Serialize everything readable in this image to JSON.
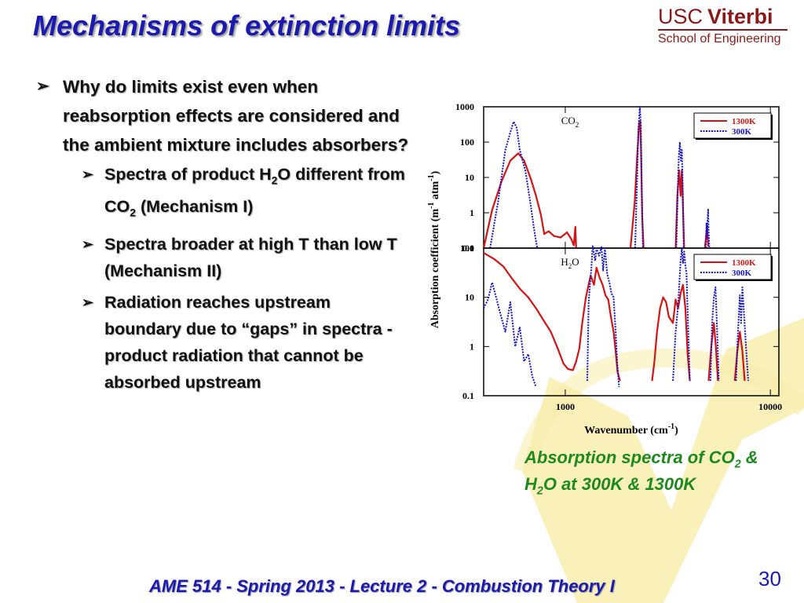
{
  "slide": {
    "title": "Mechanisms of extinction limits",
    "page_number": "30",
    "footer": "AME 514 - Spring 2013 - Lecture 2 - Combustion Theory I"
  },
  "logo": {
    "usc": "USC",
    "viterbi": "Viterbi",
    "school": "School of Engineering"
  },
  "bullets": {
    "main": "Why do limits exist even when reabsorption effects are considered and the ambient mixture includes absorbers?",
    "sub1": {
      "a": "Spectra of product H",
      "b": "2",
      "c": "O different from CO",
      "d": "2",
      "e": " (Mechanism I)"
    },
    "sub2": "Spectra broader at high T than low T  (Mechanism II)",
    "sub3": "Radiation reaches upstream boundary due to “gaps” in spectra - product radiation that cannot be absorbed upstream"
  },
  "caption": {
    "a": "Absorption spectra of CO",
    "b": "2",
    "c": " & H",
    "d": "2",
    "e": "O at 300K & 1300K"
  },
  "colors": {
    "title": "#1a1ab0",
    "caption": "#1e8a1e",
    "logo": "#8a1a1a",
    "hot": "#d41414",
    "cold": "#1414cc"
  },
  "chart_data": [
    {
      "type": "line",
      "panel_label": {
        "a": "CO",
        "b": "2"
      },
      "xscale": "log",
      "xlim": [
        400,
        11000
      ],
      "yscale": "log",
      "ylim": [
        0.1,
        1000
      ],
      "yticks": [
        "1000",
        "100",
        "10",
        "1",
        "0.1"
      ],
      "ylabel": {
        "a": "Absorption coefficient (m",
        "b": "-1",
        "c": " atm",
        "d": "-1",
        "e": ")"
      },
      "legend_position": "top-right",
      "series": [
        {
          "name": "1300K",
          "color": "#d41414",
          "style": "solid",
          "segments": [
            [
              [
                400,
                0.1
              ],
              [
                440,
                1.2
              ],
              [
                490,
                8
              ],
              [
                540,
                30
              ],
              [
                590,
                48
              ],
              [
                630,
                30
              ],
              [
                680,
                9
              ],
              [
                720,
                3
              ],
              [
                760,
                0.9
              ],
              [
                790,
                0.25
              ],
              [
                830,
                0.3
              ],
              [
                880,
                0.22
              ],
              [
                950,
                0.2
              ],
              [
                1020,
                0.28
              ],
              [
                1070,
                0.18
              ],
              [
                1100,
                0.12
              ],
              [
                1120,
                0.4
              ],
              [
                1130,
                0.1
              ]
            ],
            [
              [
                2080,
                0.1
              ],
              [
                2180,
                2
              ],
              [
                2240,
                40
              ],
              [
                2290,
                350
              ],
              [
                2320,
                380
              ],
              [
                2340,
                60
              ],
              [
                2370,
                0.8
              ],
              [
                2410,
                0.1
              ]
            ],
            [
              [
                3450,
                0.1
              ],
              [
                3520,
                3
              ],
              [
                3590,
                16
              ],
              [
                3650,
                3
              ],
              [
                3700,
                16
              ],
              [
                3750,
                1.3
              ],
              [
                3800,
                0.1
              ]
            ],
            [
              [
                4800,
                0.1
              ],
              [
                4900,
                0.4
              ],
              [
                4980,
                0.11
              ]
            ]
          ]
        },
        {
          "name": "300K",
          "color": "#1414cc",
          "style": "dotted",
          "segments": [
            [
              [
                430,
                0.1
              ],
              [
                470,
                2
              ],
              [
                510,
                60
              ],
              [
                540,
                190
              ],
              [
                560,
                380
              ],
              [
                580,
                250
              ],
              [
                600,
                60
              ],
              [
                640,
                15
              ],
              [
                680,
                1.5
              ],
              [
                710,
                0.25
              ],
              [
                730,
                0.1
              ]
            ],
            [
              [
                2190,
                0.1
              ],
              [
                2240,
                10
              ],
              [
                2270,
                200
              ],
              [
                2310,
                1000
              ],
              [
                2335,
                300
              ],
              [
                2360,
                5
              ],
              [
                2390,
                0.1
              ]
            ],
            [
              [
                3480,
                0.1
              ],
              [
                3540,
                6
              ],
              [
                3580,
                40
              ],
              [
                3620,
                100
              ],
              [
                3660,
                30
              ],
              [
                3700,
                60
              ],
              [
                3740,
                5
              ],
              [
                3780,
                0.1
              ]
            ],
            [
              [
                4850,
                0.1
              ],
              [
                4880,
                0.5
              ],
              [
                4910,
                0.2
              ],
              [
                4940,
                0.6
              ],
              [
                4970,
                1.3
              ],
              [
                5000,
                0.3
              ],
              [
                5040,
                0.1
              ]
            ]
          ]
        }
      ]
    },
    {
      "type": "line",
      "panel_label": {
        "a": "H",
        "b": "2",
        "c": "O"
      },
      "xscale": "log",
      "xlim": [
        400,
        11000
      ],
      "xticks": [
        "1000",
        "10000"
      ],
      "xlabel": {
        "a": "Wavenumber (cm",
        "b": "-1",
        "c": ")"
      },
      "yscale": "log",
      "ylim": [
        0.1,
        100
      ],
      "yticks": [
        "100",
        "10",
        "1",
        "0.1"
      ],
      "legend_position": "top-right",
      "series": [
        {
          "name": "1300K",
          "color": "#d41414",
          "style": "solid",
          "segments": [
            [
              [
                400,
                80
              ],
              [
                450,
                60
              ],
              [
                500,
                42
              ],
              [
                550,
                24
              ],
              [
                600,
                15
              ],
              [
                660,
                10
              ],
              [
                720,
                6
              ],
              [
                780,
                3.5
              ],
              [
                850,
                2
              ],
              [
                920,
                0.9
              ],
              [
                980,
                0.45
              ],
              [
                1030,
                0.35
              ],
              [
                1090,
                0.33
              ],
              [
                1130,
                0.5
              ],
              [
                1170,
                0.9
              ],
              [
                1210,
                3
              ],
              [
                1260,
                10
              ],
              [
                1330,
                28
              ],
              [
                1380,
                18
              ],
              [
                1420,
                40
              ],
              [
                1470,
                25
              ],
              [
                1520,
                18
              ],
              [
                1570,
                11
              ],
              [
                1620,
                9
              ],
              [
                1670,
                4
              ],
              [
                1720,
                2
              ],
              [
                1760,
                0.8
              ],
              [
                1800,
                0.3
              ],
              [
                1850,
                0.2
              ]
            ],
            [
              [
                2650,
                0.2
              ],
              [
                2720,
                0.5
              ],
              [
                2800,
                2
              ],
              [
                2900,
                6
              ],
              [
                3000,
                10
              ],
              [
                3100,
                8
              ],
              [
                3200,
                4
              ],
              [
                3350,
                3
              ],
              [
                3450,
                9
              ],
              [
                3550,
                6
              ],
              [
                3650,
                12
              ],
              [
                3750,
                18
              ],
              [
                3850,
                6
              ],
              [
                3950,
                0.7
              ],
              [
                4050,
                0.2
              ]
            ],
            [
              [
                5000,
                0.2
              ],
              [
                5150,
                1
              ],
              [
                5300,
                3
              ],
              [
                5420,
                1
              ],
              [
                5550,
                0.2
              ]
            ],
            [
              [
                6700,
                0.2
              ],
              [
                6900,
                0.8
              ],
              [
                7100,
                2
              ],
              [
                7300,
                0.8
              ],
              [
                7500,
                0.2
              ]
            ]
          ]
        },
        {
          "name": "300K",
          "color": "#1414cc",
          "style": "dotted",
          "segments": [
            [
              [
                400,
                6
              ],
              [
                420,
                9
              ],
              [
                440,
                20
              ],
              [
                460,
                10
              ],
              [
                480,
                5
              ],
              [
                510,
                2
              ],
              [
                540,
                8
              ],
              [
                570,
                1
              ],
              [
                600,
                2.5
              ],
              [
                630,
                0.5
              ],
              [
                660,
                0.7
              ],
              [
                690,
                0.25
              ],
              [
                720,
                0.15
              ]
            ],
            [
              [
                1280,
                0.2
              ],
              [
                1300,
                8
              ],
              [
                1340,
                40
              ],
              [
                1360,
                110
              ],
              [
                1400,
                55
              ],
              [
                1420,
                100
              ],
              [
                1460,
                70
              ],
              [
                1500,
                105
              ],
              [
                1530,
                35
              ],
              [
                1560,
                100
              ],
              [
                1600,
                30
              ],
              [
                1640,
                20
              ],
              [
                1680,
                12
              ],
              [
                1720,
                10
              ],
              [
                1760,
                2
              ],
              [
                1790,
                0.5
              ],
              [
                1830,
                0.15
              ]
            ],
            [
              [
                3350,
                0.2
              ],
              [
                3450,
                2
              ],
              [
                3550,
                7
              ],
              [
                3650,
                55
              ],
              [
                3700,
                95
              ],
              [
                3750,
                50
              ],
              [
                3800,
                85
              ],
              [
                3850,
                45
              ],
              [
                3900,
                30
              ],
              [
                3950,
                5
              ],
              [
                4000,
                1
              ],
              [
                4050,
                0.2
              ]
            ],
            [
              [
                5100,
                0.2
              ],
              [
                5200,
                3
              ],
              [
                5300,
                10
              ],
              [
                5400,
                16
              ],
              [
                5500,
                2
              ],
              [
                5600,
                0.2
              ]
            ],
            [
              [
                6800,
                0.2
              ],
              [
                6950,
                2
              ],
              [
                7100,
                11
              ],
              [
                7200,
                3
              ],
              [
                7300,
                16
              ],
              [
                7450,
                4
              ],
              [
                7600,
                1
              ],
              [
                7800,
                0.2
              ]
            ]
          ]
        }
      ]
    }
  ]
}
